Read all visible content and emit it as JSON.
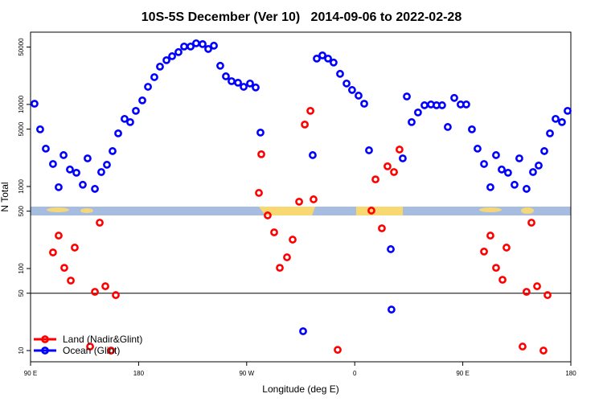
{
  "chart_data": {
    "type": "scatter",
    "title": "10S-5S December (Ver 10)   2014-09-06 to 2022-02-28",
    "x_label": "Longitude (deg E)",
    "y_label": "N Total",
    "log_y": true,
    "legend_position": "bottom-left",
    "reference_line": 50,
    "xlim": [
      90,
      540
    ],
    "ylim": [
      7.3,
      76000
    ],
    "xticks": [
      {
        "value": 90,
        "label": "90 E"
      },
      180,
      {
        "value": 270,
        "label": "90 W"
      },
      {
        "value": 360,
        "label": "0"
      },
      {
        "value": 450,
        "label": "90 E"
      },
      {
        "value": 540,
        "label": "180"
      }
    ],
    "yticks": [
      10,
      50,
      100,
      500,
      1000,
      5000,
      10000,
      50000
    ],
    "series": [
      {
        "name": "Land (Nadir&Glint)",
        "color": "#ff0000",
        "x": [
          108.7,
          113.4,
          118.1,
          123.5,
          126.8,
          139.6,
          143.6,
          147.6,
          152.3,
          157.0,
          161.0,
          280.2,
          282.2,
          287.5,
          292.9,
          297.6,
          303.6,
          308.3,
          313.7,
          318.4,
          323.1,
          325.7,
          345.8,
          373.9,
          377.3,
          382.6,
          387.3,
          392.7,
          397.3,
          467.7,
          473.0,
          477.7,
          483.1,
          486.4,
          499.8,
          503.1,
          507.2,
          511.9,
          517.2,
          520.6
        ],
        "values": [
          157,
          252,
          102,
          71.3,
          180,
          11.2,
          52.0,
          362,
          60.8,
          10,
          47.4,
          835,
          2470,
          444,
          276,
          102,
          137,
          225,
          652,
          5690,
          8350,
          697,
          10.2,
          508,
          1220,
          309,
          1760,
          1500,
          2820,
          161,
          252,
          102,
          72.9,
          180,
          11.2,
          52.0,
          362,
          60.8,
          10,
          47.4
        ]
      },
      {
        "name": "Ocean (Glint)",
        "color": "#0000ff",
        "x": [
          93.3,
          98.0,
          102.7,
          108.7,
          113.4,
          117.5,
          122.8,
          128.2,
          133.5,
          137.5,
          143.6,
          148.9,
          153.6,
          158.3,
          163.0,
          168.3,
          173.0,
          177.7,
          183.1,
          187.8,
          193.1,
          197.8,
          203.2,
          207.9,
          213.2,
          217.9,
          223.3,
          227.9,
          233.3,
          238.0,
          242.7,
          248.0,
          252.7,
          257.4,
          262.8,
          267.5,
          272.8,
          277.5,
          281.5,
          317.0,
          325.0,
          328.4,
          333.1,
          337.8,
          342.4,
          347.8,
          353.2,
          357.8,
          363.2,
          367.9,
          371.9,
          390.0,
          390.6,
          400.0,
          403.4,
          407.4,
          412.7,
          418.1,
          423.5,
          428.1,
          432.8,
          437.5,
          442.9,
          448.2,
          452.9,
          457.6,
          462.3,
          467.7,
          473.0,
          477.7,
          482.4,
          487.7,
          493.1,
          497.1,
          503.1,
          508.5,
          513.2,
          517.9,
          522.6,
          527.3,
          532.6,
          537.3
        ],
        "values": [
          10200,
          4970,
          2890,
          1880,
          980,
          2410,
          1610,
          1470,
          1050,
          2200,
          935,
          1500,
          1840,
          2700,
          4440,
          6670,
          6090,
          8350,
          11200,
          16400,
          21500,
          28900,
          34600,
          38700,
          43400,
          50800,
          50800,
          55600,
          54300,
          47400,
          52000,
          29600,
          22000,
          19200,
          18400,
          16400,
          18000,
          16100,
          4540,
          17.2,
          2410,
          36200,
          39600,
          36200,
          32400,
          23600,
          18000,
          15000,
          12800,
          10200,
          2760,
          172,
          31.6,
          2200,
          12500,
          6090,
          7980,
          9770,
          9990,
          9770,
          9770,
          5310,
          12000,
          9990,
          9990,
          4970,
          2890,
          1880,
          980,
          2410,
          1610,
          1470,
          1050,
          2200,
          935,
          1500,
          1800,
          2700,
          4440,
          6670,
          6090,
          8350
        ]
      }
    ]
  }
}
